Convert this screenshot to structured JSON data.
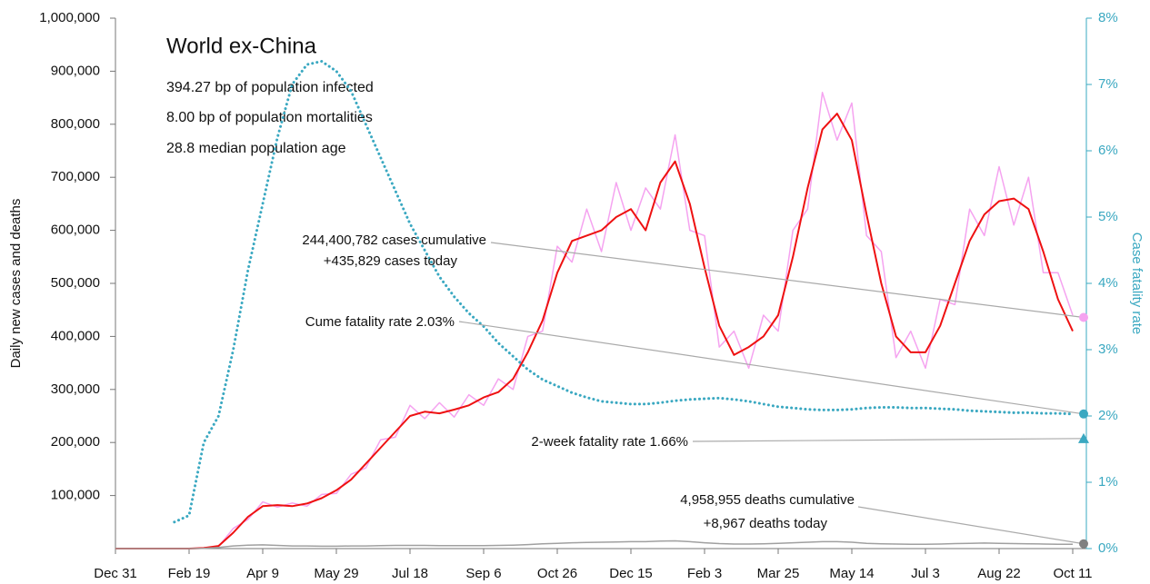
{
  "chart_data": {
    "type": "line",
    "title": "World ex-China",
    "subtitle_lines": [
      "394.27 bp of population infected",
      "8.00 bp of population mortalities",
      "28.8 median population age"
    ],
    "ylabel": "Daily new cases and deaths",
    "y2label": "Case fatality rate",
    "categories": [
      "Dec 31",
      null,
      null,
      null,
      null,
      "Feb 19",
      null,
      null,
      null,
      null,
      "Apr 9",
      null,
      null,
      null,
      null,
      "May 29",
      null,
      null,
      null,
      null,
      "Jul 18",
      null,
      null,
      null,
      null,
      "Sep 6",
      null,
      null,
      null,
      null,
      "Oct 26",
      null,
      null,
      null,
      null,
      "Dec 15",
      null,
      null,
      null,
      null,
      "Feb 3",
      null,
      null,
      null,
      null,
      "Mar 25",
      null,
      null,
      null,
      null,
      "May 14",
      null,
      null,
      null,
      null,
      "Jul 3",
      null,
      null,
      null,
      null,
      "Aug 22",
      null,
      null,
      null,
      null,
      "Oct 11"
    ],
    "series": [
      {
        "color": "#f5a3f0",
        "style": "solid",
        "width": 1.5,
        "axis": "y",
        "values": [
          0,
          0,
          0,
          0,
          0,
          0,
          1500,
          4000,
          38000,
          55000,
          88000,
          78000,
          86000,
          80000,
          102000,
          104000,
          140000,
          152000,
          205000,
          210000,
          270000,
          245000,
          275000,
          248000,
          290000,
          270000,
          320000,
          300000,
          400000,
          410000,
          570000,
          540000,
          640000,
          560000,
          690000,
          600000,
          680000,
          640000,
          780000,
          600000,
          590000,
          380000,
          410000,
          340000,
          440000,
          410000,
          600000,
          640000,
          860000,
          770000,
          840000,
          590000,
          560000,
          360000,
          410000,
          340000,
          470000,
          460000,
          640000,
          590000,
          720000,
          610000,
          700000,
          520000,
          520000,
          440000
        ]
      },
      {
        "color": "#ee1111",
        "style": "solid",
        "width": 2,
        "axis": "y",
        "values": [
          0,
          0,
          0,
          0,
          0,
          0,
          1000,
          5000,
          30000,
          60000,
          80000,
          82000,
          80000,
          85000,
          95000,
          110000,
          130000,
          160000,
          190000,
          220000,
          250000,
          258000,
          255000,
          262000,
          270000,
          285000,
          295000,
          320000,
          370000,
          430000,
          520000,
          580000,
          590000,
          600000,
          625000,
          640000,
          600000,
          690000,
          730000,
          650000,
          530000,
          420000,
          365000,
          380000,
          400000,
          440000,
          550000,
          680000,
          790000,
          820000,
          770000,
          630000,
          500000,
          400000,
          370000,
          370000,
          420000,
          500000,
          580000,
          630000,
          655000,
          660000,
          640000,
          560000,
          470000,
          410000
        ]
      },
      {
        "color": "#a0a0a0",
        "style": "solid",
        "width": 1.5,
        "axis": "y",
        "values": [
          0,
          0,
          0,
          0,
          0,
          0,
          500,
          2000,
          5000,
          6500,
          7000,
          6000,
          5000,
          5000,
          4500,
          4500,
          5000,
          5000,
          5500,
          6000,
          6000,
          6000,
          5500,
          5500,
          5500,
          5500,
          6000,
          6500,
          7500,
          9000,
          10000,
          11000,
          11500,
          12000,
          12500,
          13000,
          13000,
          14000,
          14500,
          13000,
          11000,
          9500,
          8500,
          8500,
          9000,
          10000,
          11000,
          12000,
          13000,
          13000,
          12000,
          10000,
          9000,
          8500,
          8000,
          8000,
          8500,
          9500,
          10000,
          10500,
          10000,
          9500,
          9000,
          8500,
          8000,
          8000
        ]
      },
      {
        "color": "#3aa8c1",
        "style": "dotted",
        "width": 3,
        "axis": "y2",
        "values": [
          null,
          null,
          null,
          null,
          0.4,
          0.5,
          1.6,
          2.0,
          3.0,
          4.2,
          5.2,
          6.2,
          7.0,
          7.3,
          7.35,
          7.2,
          6.9,
          6.4,
          5.9,
          5.4,
          4.9,
          4.5,
          4.1,
          3.8,
          3.55,
          3.35,
          3.1,
          2.9,
          2.7,
          2.55,
          2.45,
          2.35,
          2.28,
          2.22,
          2.2,
          2.18,
          2.18,
          2.2,
          2.23,
          2.25,
          2.26,
          2.27,
          2.25,
          2.22,
          2.18,
          2.14,
          2.12,
          2.1,
          2.09,
          2.09,
          2.1,
          2.12,
          2.13,
          2.13,
          2.12,
          2.12,
          2.11,
          2.1,
          2.08,
          2.07,
          2.06,
          2.05,
          2.05,
          2.04,
          2.04,
          2.03
        ]
      }
    ],
    "ylim": [
      0,
      1000000
    ],
    "yticks": [
      {
        "value": 100000,
        "label": "100,000"
      },
      {
        "value": 200000,
        "label": "200,000"
      },
      {
        "value": 300000,
        "label": "300,000"
      },
      {
        "value": 400000,
        "label": "400,000"
      },
      {
        "value": 500000,
        "label": "500,000"
      },
      {
        "value": 600000,
        "label": "600,000"
      },
      {
        "value": 700000,
        "label": "700,000"
      },
      {
        "value": 800000,
        "label": "800,000"
      },
      {
        "value": 900000,
        "label": "900,000"
      },
      {
        "value": 1000000,
        "label": "1,000,000"
      }
    ],
    "y2lim": [
      0,
      8
    ],
    "y2ticks": [
      {
        "value": 0,
        "label": "0%"
      },
      {
        "value": 1,
        "label": "1%"
      },
      {
        "value": 2,
        "label": "2%"
      },
      {
        "value": 3,
        "label": "3%"
      },
      {
        "value": 4,
        "label": "4%"
      },
      {
        "value": 5,
        "label": "5%"
      },
      {
        "value": 6,
        "label": "6%"
      },
      {
        "value": 7,
        "label": "7%"
      },
      {
        "value": 8,
        "label": "8%"
      }
    ],
    "y2color": "#3aa8c1",
    "annotations": [
      {
        "lines": [
          "244,400,782 cases cumulative",
          "+435,829 cases today"
        ],
        "value": 435829,
        "axis": "y",
        "marker": "circle",
        "color": "#f5a3f0"
      },
      {
        "lines": [
          "Cume fatality rate 2.03%"
        ],
        "value": 2.03,
        "axis": "y2",
        "marker": "circle",
        "color": "#3aa8c1"
      },
      {
        "lines": [
          "2-week fatality rate 1.66%"
        ],
        "value": 1.66,
        "axis": "y2",
        "marker": "triangle",
        "color": "#3aa8c1"
      },
      {
        "lines": [
          "4,958,955 deaths cumulative",
          "+8,967 deaths today"
        ],
        "value": 8967,
        "axis": "y",
        "marker": "circle",
        "color": "#808080"
      }
    ]
  }
}
